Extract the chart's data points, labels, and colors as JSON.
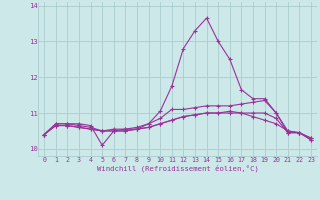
{
  "background_color": "#cce8e8",
  "grid_color": "#aacccc",
  "line_color": "#993399",
  "xlabel": "Windchill (Refroidissement éolien,°C)",
  "ylim": [
    9.8,
    14.1
  ],
  "xlim": [
    -0.5,
    23.5
  ],
  "yticks": [
    10,
    11,
    12,
    13,
    14
  ],
  "xticks": [
    0,
    1,
    2,
    3,
    4,
    5,
    6,
    7,
    8,
    9,
    10,
    11,
    12,
    13,
    14,
    15,
    16,
    17,
    18,
    19,
    20,
    21,
    22,
    23
  ],
  "series": [
    [
      10.4,
      10.7,
      10.7,
      10.7,
      10.65,
      10.1,
      10.5,
      10.55,
      10.55,
      10.7,
      11.05,
      11.75,
      12.8,
      13.3,
      13.65,
      13.0,
      12.5,
      11.65,
      11.4,
      11.4,
      11.0,
      10.45,
      10.45,
      10.3
    ],
    [
      10.4,
      10.7,
      10.7,
      10.65,
      10.6,
      10.5,
      10.55,
      10.55,
      10.6,
      10.7,
      10.85,
      11.1,
      11.1,
      11.15,
      11.2,
      11.2,
      11.2,
      11.25,
      11.3,
      11.35,
      11.0,
      10.5,
      10.45,
      10.3
    ],
    [
      10.4,
      10.65,
      10.65,
      10.6,
      10.55,
      10.5,
      10.5,
      10.5,
      10.55,
      10.6,
      10.7,
      10.8,
      10.9,
      10.95,
      11.0,
      11.0,
      11.05,
      11.0,
      11.0,
      11.0,
      10.85,
      10.45,
      10.45,
      10.25
    ],
    [
      10.4,
      10.65,
      10.65,
      10.6,
      10.55,
      10.5,
      10.5,
      10.5,
      10.55,
      10.6,
      10.7,
      10.8,
      10.9,
      10.95,
      11.0,
      11.0,
      11.0,
      11.0,
      10.9,
      10.8,
      10.7,
      10.5,
      10.45,
      10.25
    ]
  ],
  "figsize": [
    3.2,
    2.0
  ],
  "dpi": 100
}
